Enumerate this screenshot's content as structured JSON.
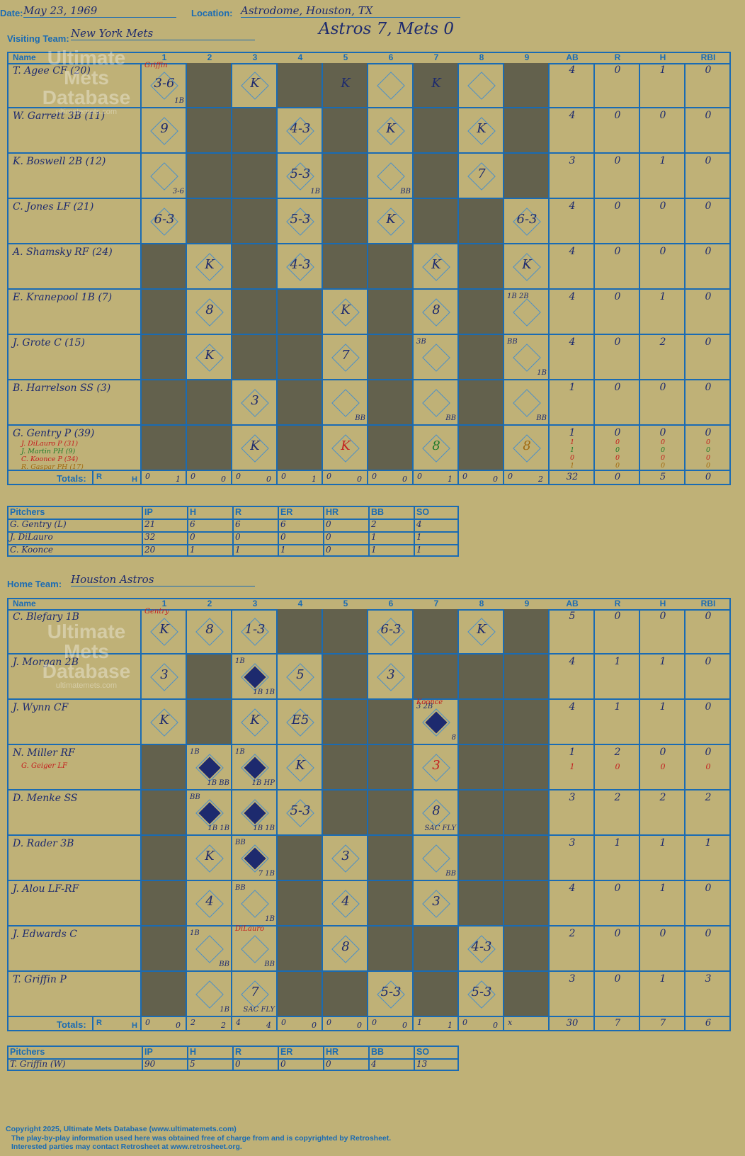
{
  "header": {
    "date_label": "Date:",
    "date": "May 23, 1969",
    "location_label": "Location:",
    "location": "Astrodome, Houston, TX",
    "visiting_label": "Visiting Team:",
    "visiting": "New York Mets",
    "score_title": "Astros 7, Mets 0",
    "home_label": "Home Team:",
    "home": "Houston Astros"
  },
  "columns": {
    "name": "Name",
    "innings": [
      "1",
      "2",
      "3",
      "4",
      "5",
      "6",
      "7",
      "8",
      "9"
    ],
    "stats": [
      "AB",
      "R",
      "H",
      "RBI"
    ]
  },
  "totals_label": "Totals:",
  "rh_label": {
    "r": "R",
    "h": "H"
  },
  "logo": {
    "line1": "Ultimate",
    "line2": "Mets",
    "line3": "Database",
    "url": "ultimatemets.com"
  },
  "visitors": {
    "players": [
      {
        "name": "T. Agee CF (20)",
        "stats": [
          "4",
          "0",
          "1",
          "0"
        ]
      },
      {
        "name": "W. Garrett 3B (11)",
        "stats": [
          "4",
          "0",
          "0",
          "0"
        ]
      },
      {
        "name": "K. Boswell 2B (12)",
        "stats": [
          "3",
          "0",
          "1",
          "0"
        ]
      },
      {
        "name": "C. Jones LF (21)",
        "stats": [
          "4",
          "0",
          "0",
          "0"
        ]
      },
      {
        "name": "A. Shamsky RF (24)",
        "stats": [
          "4",
          "0",
          "0",
          "0"
        ]
      },
      {
        "name": "E. Kranepool 1B (7)",
        "stats": [
          "4",
          "0",
          "1",
          "0"
        ]
      },
      {
        "name": "J. Grote C (15)",
        "stats": [
          "4",
          "0",
          "2",
          "0"
        ]
      },
      {
        "name": "B. Harrelson SS (3)",
        "stats": [
          "1",
          "0",
          "0",
          "0"
        ]
      },
      {
        "name": "G. Gentry P (39)",
        "stats": [
          "1",
          "0",
          "0",
          "0"
        ]
      }
    ],
    "subs": [
      {
        "name": "J. DiLauro P (31)",
        "stats": [
          "1",
          "0",
          "0",
          "0"
        ],
        "color": "red"
      },
      {
        "name": "J. Martin PH (9)",
        "stats": [
          "1",
          "0",
          "0",
          "0"
        ],
        "color": "green"
      },
      {
        "name": "C. Koonce P (34)",
        "stats": [
          "0",
          "0",
          "0",
          "0"
        ],
        "color": "red"
      },
      {
        "name": "R. Gaspar PH (17)",
        "stats": [
          "1",
          "0",
          "0",
          "0"
        ],
        "color": "orange"
      }
    ],
    "inning_totals": [
      [
        "0",
        "1"
      ],
      [
        "0",
        "0"
      ],
      [
        "0",
        "0"
      ],
      [
        "0",
        "1"
      ],
      [
        "0",
        "0"
      ],
      [
        "0",
        "0"
      ],
      [
        "0",
        "1"
      ],
      [
        "0",
        "0"
      ],
      [
        "0",
        "2"
      ]
    ],
    "totals": [
      "32",
      "0",
      "5",
      "0"
    ],
    "pitcher_headers": [
      "Pitchers",
      "IP",
      "H",
      "R",
      "ER",
      "HR",
      "BB",
      "SO"
    ],
    "pitchers": [
      [
        "G. Gentry (L)",
        "21",
        "6",
        "6",
        "6",
        "0",
        "2",
        "4"
      ],
      [
        "J. DiLauro",
        "32",
        "0",
        "0",
        "0",
        "0",
        "1",
        "1"
      ],
      [
        "C. Koonce",
        "20",
        "1",
        "1",
        "1",
        "0",
        "1",
        "1"
      ]
    ]
  },
  "home_team": {
    "players": [
      {
        "name": "C. Blefary 1B",
        "stats": [
          "5",
          "0",
          "0",
          "0"
        ]
      },
      {
        "name": "J. Morgan 2B",
        "stats": [
          "4",
          "1",
          "1",
          "0"
        ]
      },
      {
        "name": "J. Wynn CF",
        "stats": [
          "4",
          "1",
          "1",
          "0"
        ]
      },
      {
        "name": "N. Miller RF",
        "stats": [
          "1",
          "2",
          "0",
          "0"
        ],
        "sub": "G. Geiger LF",
        "sub_stats": [
          "1",
          "0",
          "0",
          "0"
        ]
      },
      {
        "name": "D. Menke SS",
        "stats": [
          "3",
          "2",
          "2",
          "2"
        ]
      },
      {
        "name": "D. Rader 3B",
        "stats": [
          "3",
          "1",
          "1",
          "1"
        ]
      },
      {
        "name": "J. Alou LF-RF",
        "stats": [
          "4",
          "0",
          "1",
          "0"
        ]
      },
      {
        "name": "J. Edwards C",
        "stats": [
          "2",
          "0",
          "0",
          "0"
        ]
      },
      {
        "name": "T. Griffin P",
        "stats": [
          "3",
          "0",
          "1",
          "3"
        ]
      }
    ],
    "inning_totals": [
      [
        "0",
        "0"
      ],
      [
        "2",
        "2"
      ],
      [
        "4",
        "4"
      ],
      [
        "0",
        "0"
      ],
      [
        "0",
        "0"
      ],
      [
        "0",
        "0"
      ],
      [
        "1",
        "1"
      ],
      [
        "0",
        "0"
      ],
      [
        "x",
        ""
      ]
    ],
    "totals": [
      "30",
      "7",
      "7",
      "6"
    ],
    "pitcher_headers": [
      "Pitchers",
      "IP",
      "H",
      "R",
      "ER",
      "HR",
      "BB",
      "SO"
    ],
    "pitchers": [
      [
        "T. Griffin (W)",
        "90",
        "5",
        "0",
        "0",
        "0",
        "4",
        "13"
      ]
    ]
  },
  "visitor_marks": [
    {
      "r": 0,
      "c": 0,
      "t": "3-6",
      "n": "Griffin",
      "s": "1B"
    },
    {
      "r": 0,
      "c": 2,
      "t": "K"
    },
    {
      "r": 0,
      "c": 4,
      "t": "K"
    },
    {
      "r": 0,
      "c": 6,
      "t": "K"
    },
    {
      "r": 1,
      "c": 0,
      "t": "9"
    },
    {
      "r": 1,
      "c": 3,
      "t": "4-3"
    },
    {
      "r": 1,
      "c": 5,
      "t": "K"
    },
    {
      "r": 1,
      "c": 7,
      "t": "K"
    },
    {
      "r": 2,
      "c": 0,
      "s": "3-6"
    },
    {
      "r": 2,
      "c": 3,
      "t": "5-3",
      "s": "1B"
    },
    {
      "r": 2,
      "c": 5,
      "s": "BB"
    },
    {
      "r": 2,
      "c": 7,
      "t": "7"
    },
    {
      "r": 3,
      "c": 0,
      "t": "6-3"
    },
    {
      "r": 3,
      "c": 3,
      "t": "5-3"
    },
    {
      "r": 3,
      "c": 5,
      "t": "K"
    },
    {
      "r": 3,
      "c": 8,
      "t": "6-3"
    },
    {
      "r": 4,
      "c": 1,
      "t": "K"
    },
    {
      "r": 4,
      "c": 3,
      "t": "4-3"
    },
    {
      "r": 4,
      "c": 6,
      "t": "K"
    },
    {
      "r": 4,
      "c": 8,
      "t": "K"
    },
    {
      "r": 5,
      "c": 1,
      "t": "8"
    },
    {
      "r": 5,
      "c": 4,
      "t": "K"
    },
    {
      "r": 5,
      "c": 6,
      "t": "8"
    },
    {
      "r": 5,
      "c": 8,
      "t": "1B 2B"
    },
    {
      "r": 6,
      "c": 1,
      "t": "K"
    },
    {
      "r": 6,
      "c": 4,
      "t": "7"
    },
    {
      "r": 6,
      "c": 6,
      "t": "3B"
    },
    {
      "r": 6,
      "c": 8,
      "t": "BB",
      "s": "1B"
    },
    {
      "r": 7,
      "c": 2,
      "t": "3"
    },
    {
      "r": 7,
      "c": 4,
      "s": "BB"
    },
    {
      "r": 7,
      "c": 6,
      "s": "BB"
    },
    {
      "r": 7,
      "c": 8,
      "s": "BB"
    },
    {
      "r": 8,
      "c": 2,
      "t": "K"
    },
    {
      "r": 8,
      "c": 4,
      "t": "K",
      "k": "red"
    },
    {
      "r": 8,
      "c": 6,
      "t": "8",
      "k": "green"
    },
    {
      "r": 8,
      "c": 8,
      "t": "8",
      "k": "orange"
    }
  ],
  "home_marks": [
    {
      "r": 0,
      "c": 0,
      "t": "K",
      "n": "Gentry"
    },
    {
      "r": 0,
      "c": 1,
      "t": "8"
    },
    {
      "r": 0,
      "c": 2,
      "t": "1-3"
    },
    {
      "r": 0,
      "c": 5,
      "t": "6-3"
    },
    {
      "r": 0,
      "c": 7,
      "t": "K"
    },
    {
      "r": 1,
      "c": 0,
      "t": "3"
    },
    {
      "r": 1,
      "c": 2,
      "t": "1B",
      "s": "1B 1B",
      "f": true
    },
    {
      "r": 1,
      "c": 3,
      "t": "5"
    },
    {
      "r": 1,
      "c": 5,
      "t": "3"
    },
    {
      "r": 2,
      "c": 0,
      "t": "K"
    },
    {
      "r": 2,
      "c": 2,
      "t": "K"
    },
    {
      "r": 2,
      "c": 3,
      "t": "E5"
    },
    {
      "r": 2,
      "c": 6,
      "t": "3 2B",
      "n": "Koonce",
      "s": "8",
      "f": true
    },
    {
      "r": 3,
      "c": 1,
      "t": "1B",
      "s": "1B BB",
      "f": true
    },
    {
      "r": 3,
      "c": 2,
      "t": "1B",
      "s": "1B HP",
      "f": true
    },
    {
      "r": 3,
      "c": 3,
      "t": "K"
    },
    {
      "r": 3,
      "c": 6,
      "t": "3",
      "k": "red"
    },
    {
      "r": 4,
      "c": 1,
      "t": "BB",
      "s": "1B 1B",
      "f": true
    },
    {
      "r": 4,
      "c": 2,
      "s": "1B 1B",
      "f": true
    },
    {
      "r": 4,
      "c": 3,
      "t": "5-3"
    },
    {
      "r": 4,
      "c": 6,
      "t": "8",
      "s": "SAC FLY"
    },
    {
      "r": 5,
      "c": 1,
      "t": "K"
    },
    {
      "r": 5,
      "c": 2,
      "t": "BB",
      "s": "7 1B",
      "f": true
    },
    {
      "r": 5,
      "c": 4,
      "t": "3"
    },
    {
      "r": 5,
      "c": 6,
      "s": "BB"
    },
    {
      "r": 6,
      "c": 1,
      "t": "4"
    },
    {
      "r": 6,
      "c": 2,
      "t": "BB",
      "s": "1B"
    },
    {
      "r": 6,
      "c": 4,
      "t": "4"
    },
    {
      "r": 6,
      "c": 6,
      "t": "3"
    },
    {
      "r": 7,
      "c": 1,
      "t": "1B",
      "s": "BB"
    },
    {
      "r": 7,
      "c": 2,
      "n": "DiLauro",
      "s": "BB"
    },
    {
      "r": 7,
      "c": 4,
      "t": "8"
    },
    {
      "r": 7,
      "c": 7,
      "t": "4-3"
    },
    {
      "r": 8,
      "c": 1,
      "s": "1B"
    },
    {
      "r": 8,
      "c": 2,
      "t": "7",
      "s": "SAC FLY"
    },
    {
      "r": 8,
      "c": 5,
      "t": "5-3"
    },
    {
      "r": 8,
      "c": 7,
      "t": "5-3"
    }
  ],
  "footer": {
    "line1": "Copyright 2025, Ultimate Mets Database (www.ultimatemets.com)",
    "line2": "The play-by-play information used here was obtained free of charge from and is copyrighted by Retrosheet.",
    "line3": "Interested parties may contact Retrosheet at www.retrosheet.org."
  }
}
